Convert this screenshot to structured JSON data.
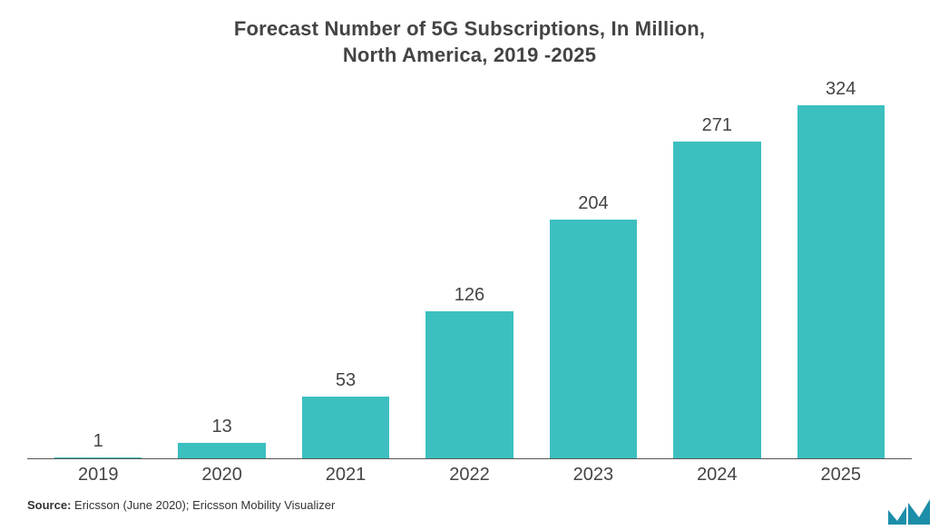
{
  "chart": {
    "type": "bar",
    "title_line1": "Forecast Number of 5G Subscriptions, In Million,",
    "title_line2": "North America, 2019 -2025",
    "title_fontsize": 22,
    "title_color": "#444444",
    "categories": [
      "2019",
      "2020",
      "2021",
      "2022",
      "2023",
      "2024",
      "2025"
    ],
    "values": [
      1,
      13,
      53,
      126,
      204,
      271,
      324
    ],
    "value_labels": [
      "1",
      "13",
      "53",
      "126",
      "204",
      "271",
      "324"
    ],
    "bar_color": "#3cbfbf",
    "bar_width_ratio": 0.62,
    "ylim": [
      0,
      324
    ],
    "axis_line_color": "#555555",
    "background_color": "#ffffff",
    "label_fontsize": 20,
    "label_color": "#444444",
    "xaxis_fontsize": 20,
    "xaxis_color": "#444444"
  },
  "source": {
    "prefix": "Source:",
    "text": " Ericsson (June 2020); Ericsson Mobility Visualizer",
    "fontsize": 13,
    "color": "#333333"
  },
  "logo": {
    "color": "#1c8ea8",
    "name": "mi-logo"
  }
}
